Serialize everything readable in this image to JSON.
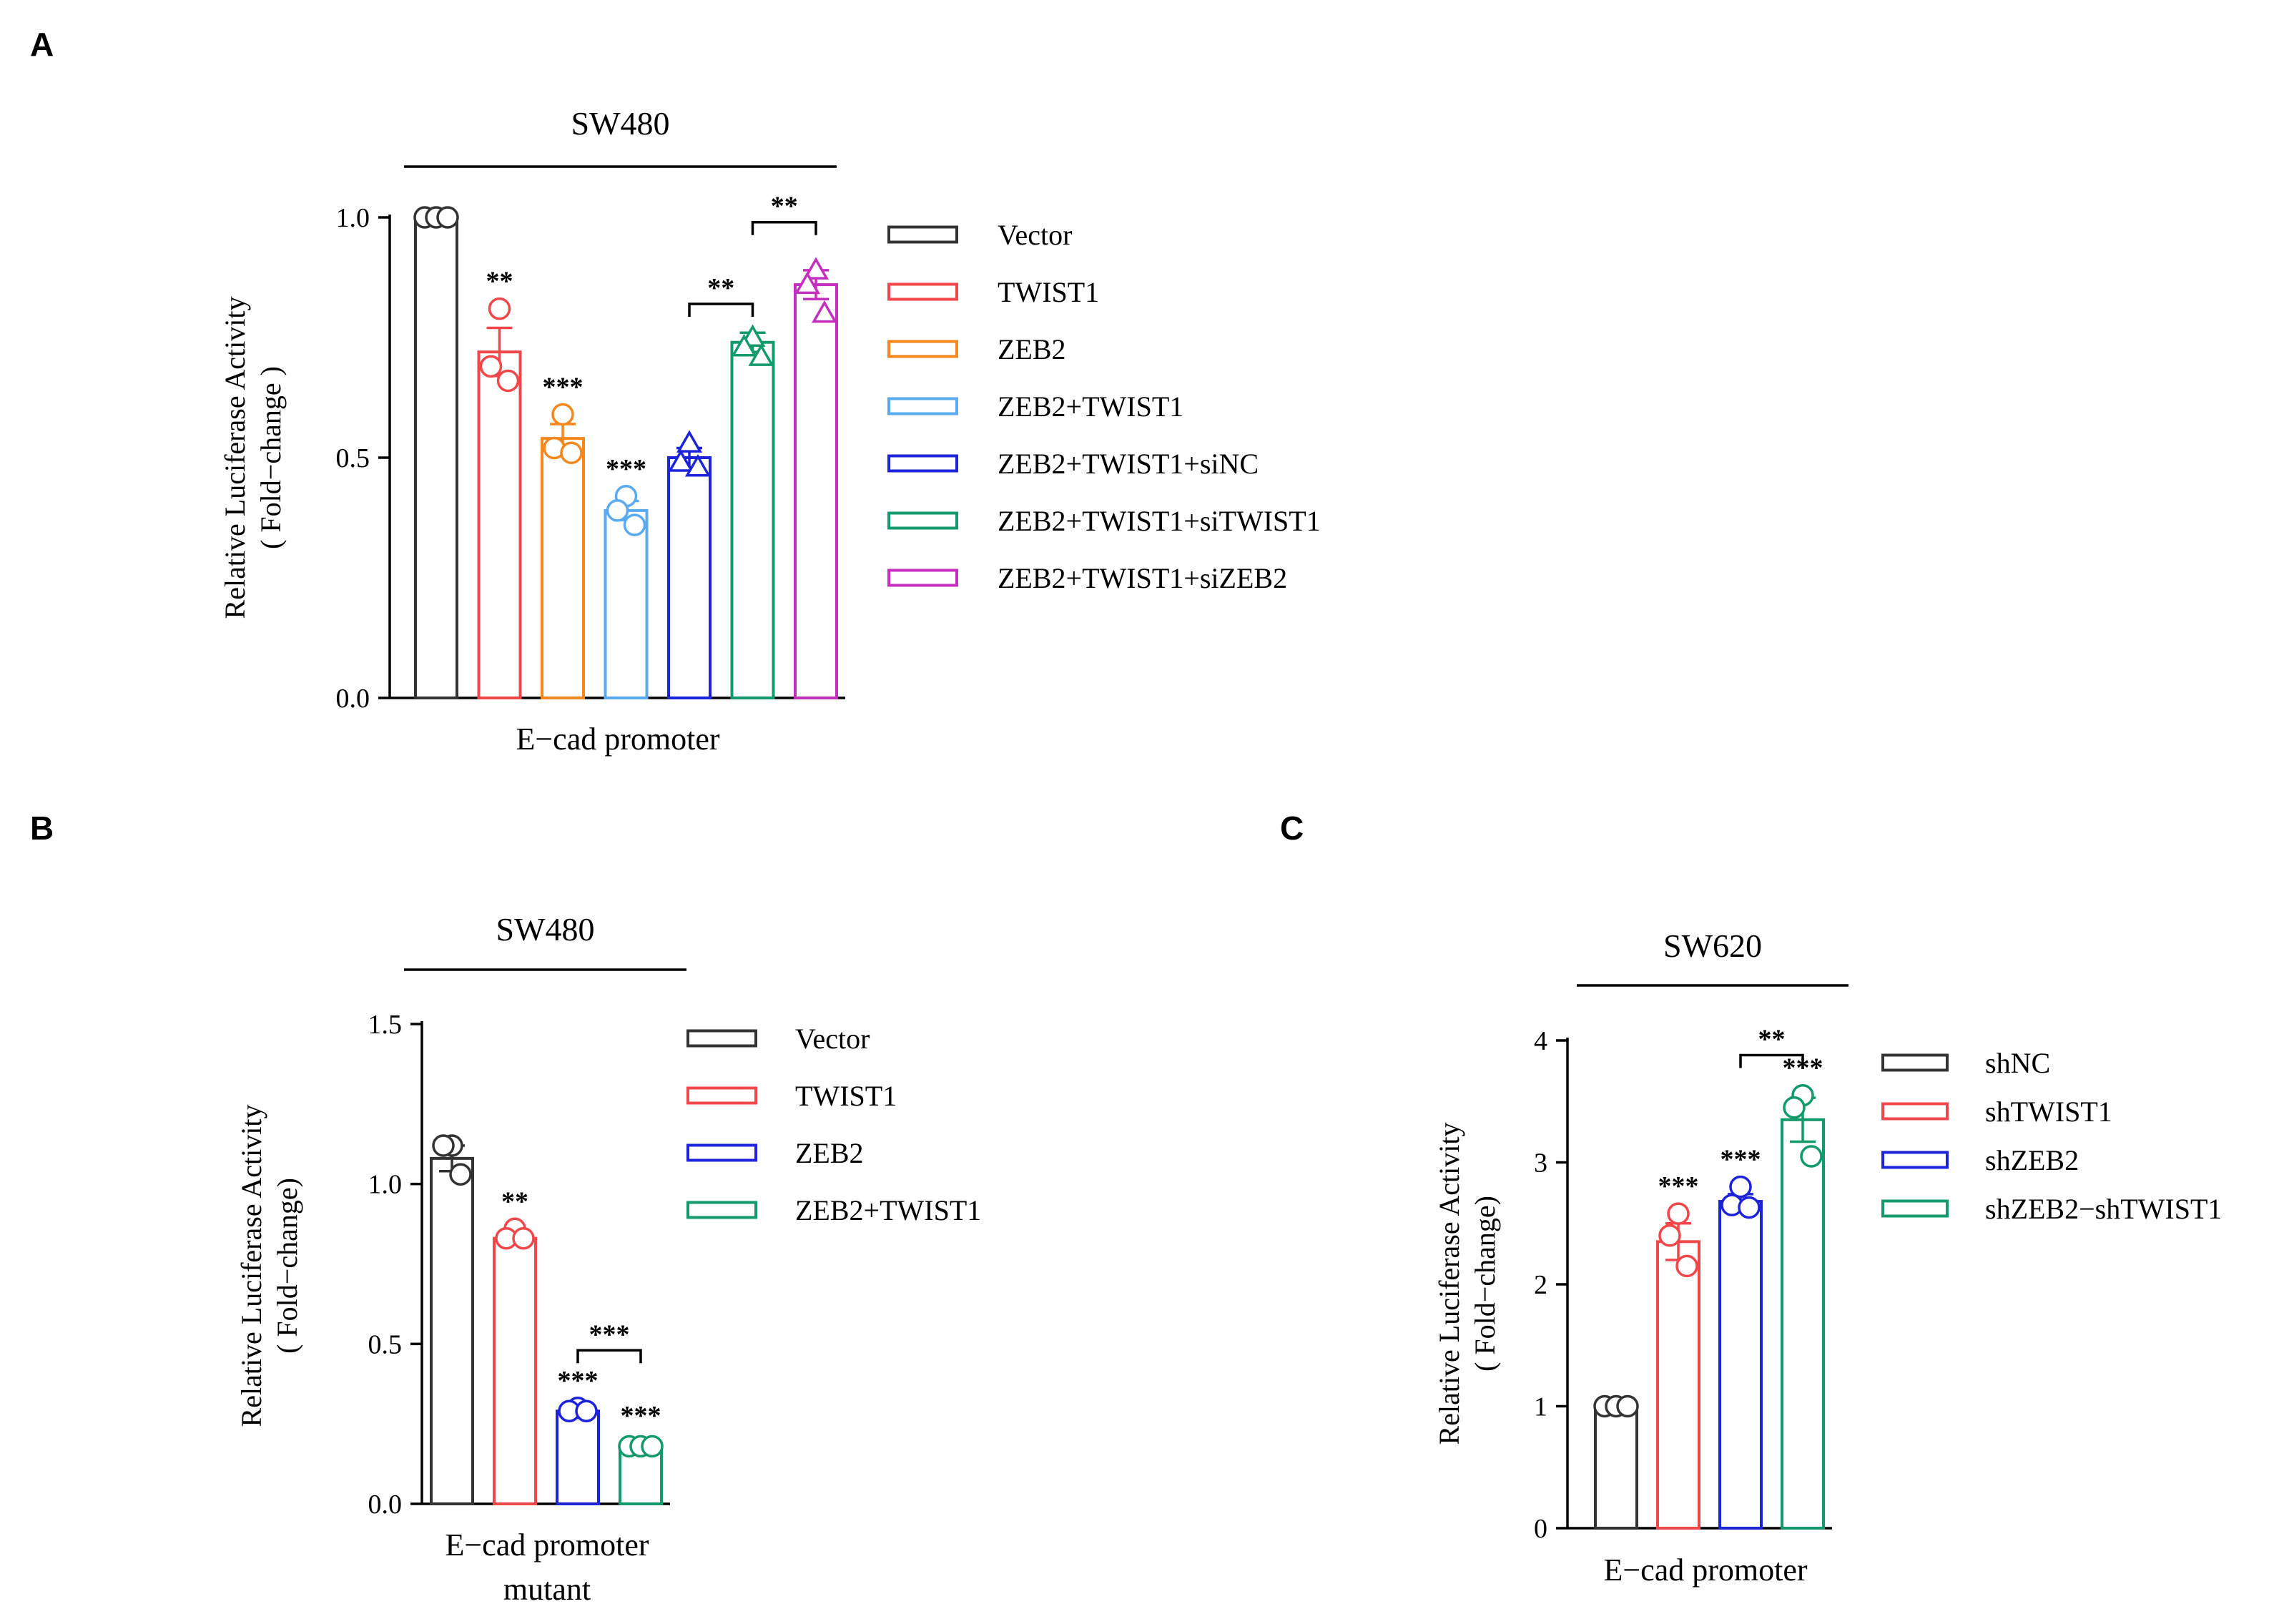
{
  "chart_data": [
    {
      "type": "bar",
      "panel": "A",
      "title": "SW480",
      "ylabel_line1": "Relative Luciferase Activity",
      "ylabel_line2": "( Fold−change )",
      "xlabel_lines": [
        "E−cad promoter"
      ],
      "ylim": [
        0,
        1.0
      ],
      "yticks": [
        "0.0",
        "0.5",
        "1.0"
      ],
      "ytick_values": [
        0,
        0.5,
        1.0
      ],
      "series": [
        {
          "name": "Vector",
          "color": "#333333",
          "value": 1.0,
          "err": 0.0,
          "points": [
            1.0,
            1.0,
            1.0
          ],
          "marker": "circle",
          "sig": ""
        },
        {
          "name": "TWIST1",
          "color": "#f0474a",
          "value": 0.72,
          "err": 0.05,
          "points": [
            0.81,
            0.69,
            0.66
          ],
          "marker": "circle",
          "sig": "**"
        },
        {
          "name": "ZEB2",
          "color": "#f5871f",
          "value": 0.54,
          "err": 0.03,
          "points": [
            0.59,
            0.52,
            0.51
          ],
          "marker": "circle",
          "sig": "***"
        },
        {
          "name": "ZEB2+TWIST1",
          "color": "#5aaaf0",
          "value": 0.39,
          "err": 0.02,
          "points": [
            0.42,
            0.39,
            0.36
          ],
          "marker": "circle",
          "sig": "***"
        },
        {
          "name": "ZEB2+TWIST1+siNC",
          "color": "#1c23d8",
          "value": 0.5,
          "err": 0.02,
          "points": [
            0.53,
            0.49,
            0.48
          ],
          "marker": "triangle",
          "sig": ""
        },
        {
          "name": "ZEB2+TWIST1+siTWIST1",
          "color": "#129a6a",
          "value": 0.74,
          "err": 0.02,
          "points": [
            0.75,
            0.73,
            0.71
          ],
          "marker": "triangle",
          "sig": ""
        },
        {
          "name": "ZEB2+TWIST1+siZEB2",
          "color": "#c42fbf",
          "value": 0.86,
          "err": 0.03,
          "points": [
            0.89,
            0.86,
            0.8
          ],
          "marker": "triangle",
          "sig": ""
        }
      ],
      "brackets": [
        {
          "from": 5,
          "to": 6,
          "label": "**",
          "y": 0.99
        },
        {
          "from": 4,
          "to": 5,
          "label": "**",
          "y": 0.82
        }
      ]
    },
    {
      "type": "bar",
      "panel": "B",
      "title": "SW480",
      "ylabel_line1": "Relative Luciferase Activity",
      "ylabel_line2": "( Fold−change)",
      "xlabel_lines": [
        "E−cad promoter",
        "mutant"
      ],
      "ylim": [
        0,
        1.5
      ],
      "yticks": [
        "0.0",
        "0.5",
        "1.0",
        "1.5"
      ],
      "ytick_values": [
        0,
        0.5,
        1.0,
        1.5
      ],
      "series": [
        {
          "name": "Vector",
          "color": "#333333",
          "value": 1.08,
          "err": 0.04,
          "points": [
            1.12,
            1.12,
            1.03
          ],
          "marker": "circle",
          "sig": ""
        },
        {
          "name": "TWIST1",
          "color": "#f0474a",
          "value": 0.83,
          "err": 0.01,
          "points": [
            0.86,
            0.83,
            0.83
          ],
          "marker": "circle",
          "sig": "**"
        },
        {
          "name": "ZEB2",
          "color": "#1c23d8",
          "value": 0.29,
          "err": 0.01,
          "points": [
            0.3,
            0.29,
            0.29
          ],
          "marker": "circle",
          "sig": "***"
        },
        {
          "name": "ZEB2+TWIST1",
          "color": "#129a6a",
          "value": 0.18,
          "err": 0.01,
          "points": [
            0.18,
            0.18,
            0.18
          ],
          "marker": "circle",
          "sig": "***"
        }
      ],
      "brackets": [
        {
          "from": 2,
          "to": 3,
          "label": "***",
          "y": 0.48
        }
      ]
    },
    {
      "type": "bar",
      "panel": "C",
      "title": "SW620",
      "ylabel_line1": "Relative Luciferase Activity",
      "ylabel_line2": "( Fold−change)",
      "xlabel_lines": [
        "E−cad promoter"
      ],
      "ylim": [
        0,
        4
      ],
      "yticks": [
        "0",
        "1",
        "2",
        "3",
        "4"
      ],
      "ytick_values": [
        0,
        1,
        2,
        3,
        4
      ],
      "series": [
        {
          "name": "shNC",
          "color": "#333333",
          "value": 1.0,
          "err": 0.0,
          "points": [
            1.0,
            1.0,
            1.0
          ],
          "marker": "circle",
          "sig": ""
        },
        {
          "name": "shTWIST1",
          "color": "#f0474a",
          "value": 2.35,
          "err": 0.15,
          "points": [
            2.58,
            2.4,
            2.15
          ],
          "marker": "circle",
          "sig": "***"
        },
        {
          "name": "shZEB2",
          "color": "#1c23d8",
          "value": 2.68,
          "err": 0.06,
          "points": [
            2.8,
            2.65,
            2.63
          ],
          "marker": "circle",
          "sig": "***"
        },
        {
          "name": "shZEB2−shTWIST1",
          "color": "#129a6a",
          "value": 3.35,
          "err": 0.18,
          "points": [
            3.55,
            3.45,
            3.05
          ],
          "marker": "circle",
          "sig": "***"
        }
      ],
      "brackets": [
        {
          "from": 2,
          "to": 3,
          "label": "**",
          "y": 3.88
        }
      ]
    }
  ]
}
